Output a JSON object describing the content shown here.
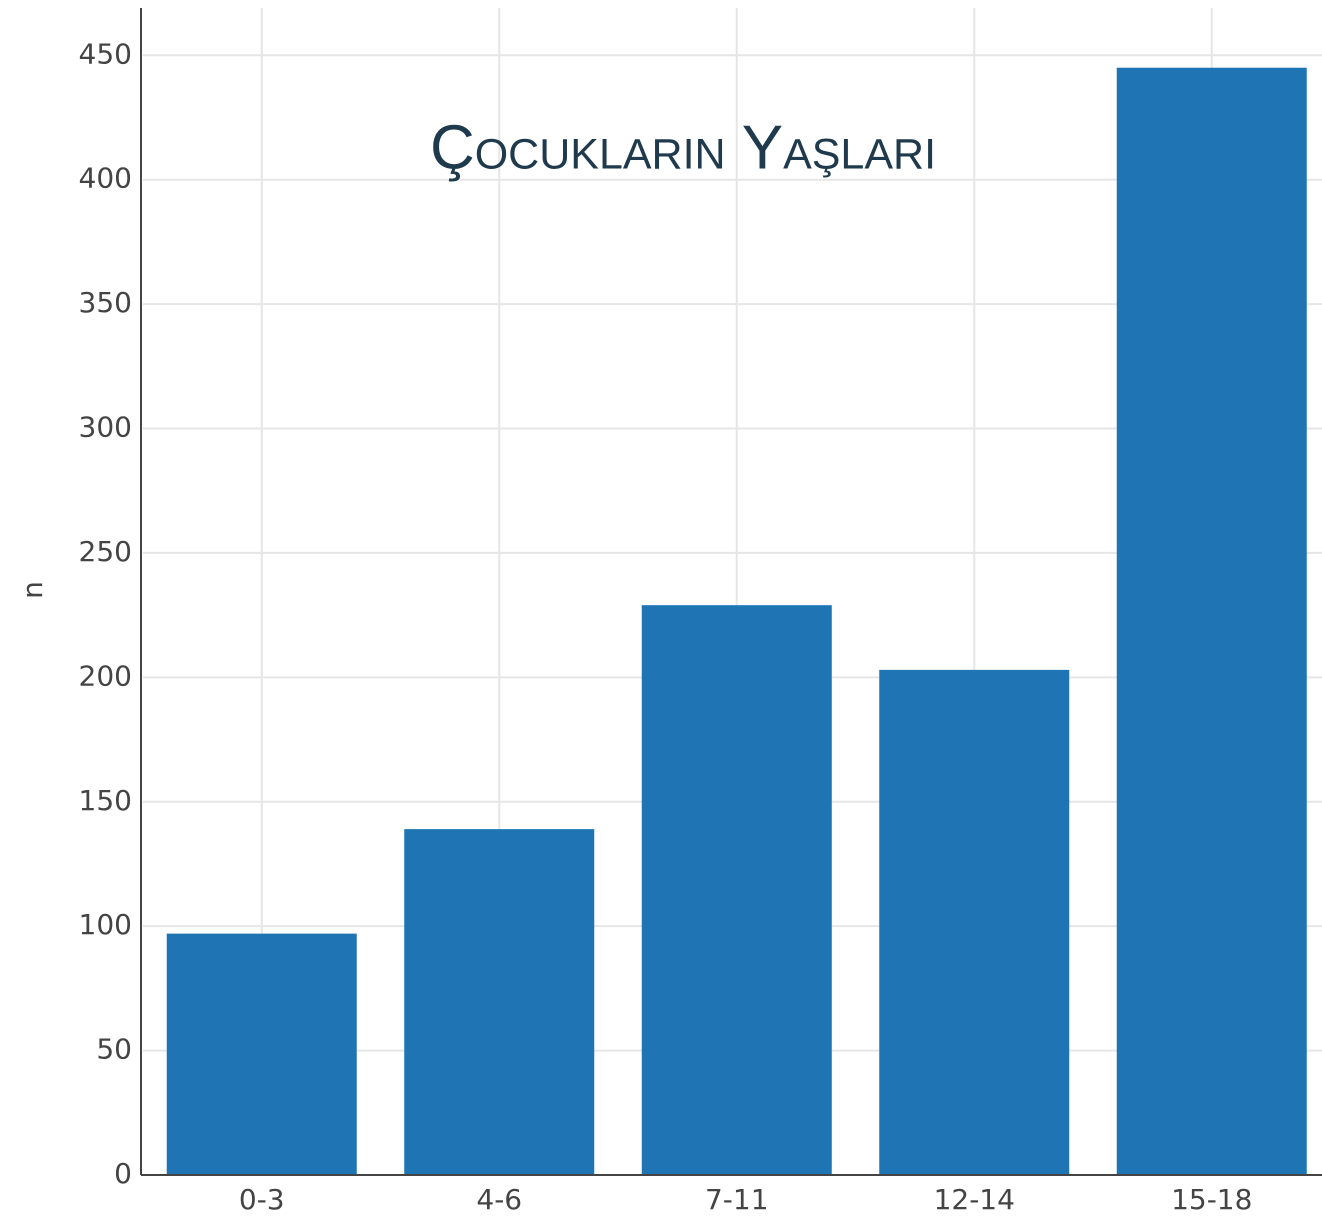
{
  "chart_data": {
    "type": "bar",
    "title": "Çocukların Yaşları",
    "y_label": "n",
    "categories": [
      "0-3",
      "4-6",
      "7-11",
      "12-14",
      "15-18"
    ],
    "values": [
      97,
      139,
      229,
      203,
      445
    ],
    "color": "#1f74b4",
    "ylim": [
      0,
      469
    ],
    "yticks": [
      0,
      50,
      100,
      150,
      200,
      250,
      300,
      350,
      400,
      450
    ],
    "grid": true
  }
}
